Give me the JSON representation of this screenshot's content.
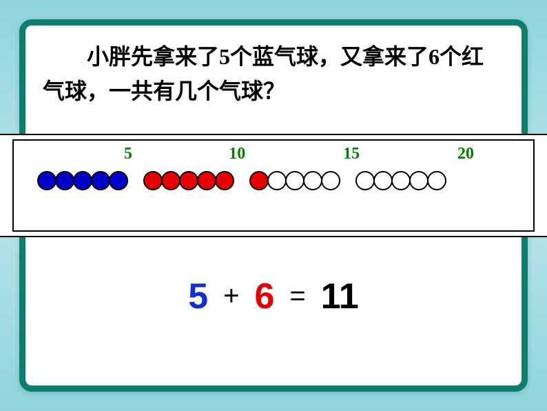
{
  "question": {
    "text": "小胖先拿来了5个蓝气球，又拿来了6个红气球，一共有几个气球？",
    "fontsize": 32,
    "color": "#000000"
  },
  "number_strip": {
    "labels": [
      {
        "value": "5",
        "x_percent": 22
      },
      {
        "value": "10",
        "x_percent": 43
      },
      {
        "value": "15",
        "x_percent": 65
      },
      {
        "value": "20",
        "x_percent": 87
      }
    ],
    "label_color": "#008000",
    "label_fontsize": 24,
    "groups": [
      {
        "count": 5,
        "fills": [
          "#0000c8",
          "#0000c8",
          "#0000c8",
          "#0000c8",
          "#0000c8"
        ]
      },
      {
        "count": 5,
        "fills": [
          "#e60000",
          "#e60000",
          "#e60000",
          "#e60000",
          "#e60000"
        ]
      },
      {
        "count": 5,
        "fills": [
          "#e60000",
          "#ffffff",
          "#ffffff",
          "#ffffff",
          "#ffffff"
        ]
      },
      {
        "count": 5,
        "fills": [
          "#ffffff",
          "#ffffff",
          "#ffffff",
          "#ffffff",
          "#ffffff"
        ]
      }
    ],
    "circle_diameter": 28,
    "circle_border_color": "#000000",
    "group_gap": 24,
    "background_color": "#ffffff",
    "border_color": "#000000"
  },
  "equation": {
    "parts": [
      {
        "text": "5",
        "color": "#1030d0"
      },
      {
        "text": "+",
        "color": "#000000",
        "op": true
      },
      {
        "text": "6",
        "color": "#e60000"
      },
      {
        "text": "=",
        "color": "#000000",
        "op": true
      },
      {
        "text": "11",
        "color": "#000000"
      }
    ],
    "fontsize": 52
  },
  "frame": {
    "border_color": "#0d7e6b",
    "border_width": 9,
    "border_radius": 18,
    "background": "#ffffff"
  },
  "page_background_gradient": [
    "#8fd4dc",
    "#b8e4ea",
    "#8fd4dc"
  ]
}
